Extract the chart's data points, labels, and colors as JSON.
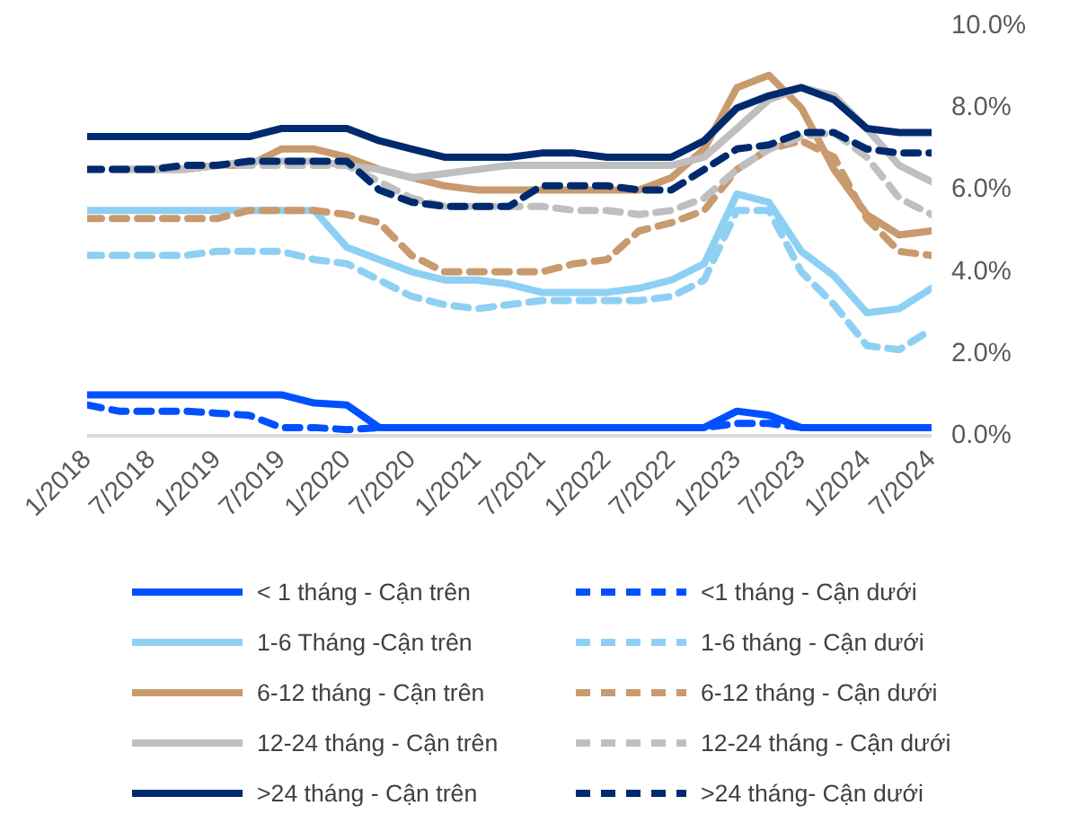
{
  "chart_data": {
    "type": "line",
    "x": [
      "2018-01",
      "2018-04",
      "2018-07",
      "2018-10",
      "2019-01",
      "2019-04",
      "2019-07",
      "2019-10",
      "2020-01",
      "2020-04",
      "2020-07",
      "2020-10",
      "2021-01",
      "2021-04",
      "2021-07",
      "2021-10",
      "2022-01",
      "2022-04",
      "2022-07",
      "2022-10",
      "2023-01",
      "2023-04",
      "2023-07",
      "2023-10",
      "2024-01",
      "2024-04",
      "2024-07"
    ],
    "series": [
      {
        "name": "< 1 tháng - Cận trên",
        "color": "#0050ff",
        "line_style": "solid",
        "values": [
          1.0,
          1.0,
          1.0,
          1.0,
          1.0,
          1.0,
          1.0,
          0.8,
          0.75,
          0.2,
          0.2,
          0.2,
          0.2,
          0.2,
          0.2,
          0.2,
          0.2,
          0.2,
          0.2,
          0.2,
          0.6,
          0.5,
          0.2,
          0.2,
          0.2,
          0.2,
          0.2
        ]
      },
      {
        "name": "<1 tháng - Cận dưới",
        "color": "#0050ff",
        "line_style": "dashed",
        "values": [
          0.75,
          0.6,
          0.6,
          0.6,
          0.55,
          0.5,
          0.2,
          0.2,
          0.15,
          0.2,
          0.2,
          0.2,
          0.2,
          0.2,
          0.2,
          0.2,
          0.2,
          0.2,
          0.2,
          0.2,
          0.3,
          0.3,
          0.2,
          0.2,
          0.2,
          0.2,
          0.2
        ]
      },
      {
        "name": "1-6 Tháng -Cận trên",
        "color": "#8ed0f4",
        "line_style": "solid",
        "values": [
          5.5,
          5.5,
          5.5,
          5.5,
          5.5,
          5.5,
          5.5,
          5.5,
          4.6,
          4.3,
          4.0,
          3.8,
          3.8,
          3.7,
          3.5,
          3.5,
          3.5,
          3.6,
          3.8,
          4.2,
          5.9,
          5.7,
          4.5,
          3.9,
          3.0,
          3.1,
          3.6
        ]
      },
      {
        "name": "1-6 tháng - Cận dưới",
        "color": "#8ed0f4",
        "line_style": "dashed",
        "values": [
          4.4,
          4.4,
          4.4,
          4.4,
          4.5,
          4.5,
          4.5,
          4.3,
          4.2,
          3.8,
          3.4,
          3.2,
          3.1,
          3.2,
          3.3,
          3.3,
          3.3,
          3.3,
          3.4,
          3.8,
          5.5,
          5.5,
          4.0,
          3.2,
          2.2,
          2.1,
          2.6
        ]
      },
      {
        "name": "6-12 tháng - Cận trên",
        "color": "#c99a6e",
        "line_style": "solid",
        "values": [
          null,
          6.5,
          6.5,
          6.5,
          6.6,
          6.6,
          7.0,
          7.0,
          6.8,
          6.5,
          6.3,
          6.1,
          6.0,
          6.0,
          6.0,
          6.0,
          6.0,
          6.0,
          6.3,
          7.0,
          8.5,
          8.8,
          8.0,
          6.5,
          5.4,
          4.9,
          5.0
        ]
      },
      {
        "name": "6-12 tháng - Cận dưới",
        "color": "#c99a6e",
        "line_style": "dashed",
        "values": [
          5.3,
          5.3,
          5.3,
          5.3,
          5.3,
          5.5,
          5.5,
          5.5,
          5.4,
          5.2,
          4.4,
          4.0,
          4.0,
          4.0,
          4.0,
          4.2,
          4.3,
          5.0,
          5.2,
          5.5,
          6.5,
          7.0,
          7.2,
          6.8,
          5.3,
          4.5,
          4.4
        ]
      },
      {
        "name": "12-24 tháng - Cận trên",
        "color": "#bfbfbf",
        "line_style": "solid",
        "values": [
          null,
          6.5,
          6.5,
          6.5,
          6.6,
          6.7,
          6.7,
          6.7,
          6.6,
          6.5,
          6.3,
          6.4,
          6.5,
          6.6,
          6.6,
          6.6,
          6.6,
          6.6,
          6.6,
          6.8,
          7.5,
          8.2,
          8.5,
          8.3,
          7.5,
          6.6,
          6.2
        ]
      },
      {
        "name": "12-24 tháng - Cận dưới",
        "color": "#bfbfbf",
        "line_style": "dashed",
        "values": [
          6.5,
          6.5,
          6.5,
          6.5,
          6.6,
          6.6,
          6.6,
          6.6,
          6.6,
          6.2,
          5.8,
          5.6,
          5.6,
          5.6,
          5.6,
          5.5,
          5.5,
          5.4,
          5.5,
          5.8,
          6.5,
          7.0,
          7.3,
          7.4,
          6.8,
          5.8,
          5.4
        ]
      },
      {
        "name": ">24 tháng - Cận trên",
        "color": "#002a6e",
        "line_style": "solid",
        "values": [
          7.3,
          7.3,
          7.3,
          7.3,
          7.3,
          7.3,
          7.5,
          7.5,
          7.5,
          7.2,
          7.0,
          6.8,
          6.8,
          6.8,
          6.9,
          6.9,
          6.8,
          6.8,
          6.8,
          7.2,
          8.0,
          8.3,
          8.5,
          8.2,
          7.5,
          7.4,
          7.4
        ]
      },
      {
        "name": ">24 tháng- Cận dưới",
        "color": "#002a6e",
        "line_style": "dashed",
        "values": [
          6.5,
          6.5,
          6.5,
          6.6,
          6.6,
          6.7,
          6.7,
          6.7,
          6.7,
          6.0,
          5.7,
          5.6,
          5.6,
          5.6,
          6.1,
          6.1,
          6.1,
          6.0,
          6.0,
          6.5,
          7.0,
          7.1,
          7.4,
          7.4,
          7.0,
          6.9,
          6.9
        ]
      }
    ],
    "xlim": [
      "2018-01",
      "2024-07"
    ],
    "xticks": [
      {
        "value": "2018-01",
        "label": "1/2018"
      },
      {
        "value": "2018-07",
        "label": "7/2018"
      },
      {
        "value": "2019-01",
        "label": "1/2019"
      },
      {
        "value": "2019-07",
        "label": "7/2019"
      },
      {
        "value": "2020-01",
        "label": "1/2020"
      },
      {
        "value": "2020-07",
        "label": "7/2020"
      },
      {
        "value": "2021-01",
        "label": "1/2021"
      },
      {
        "value": "2021-07",
        "label": "7/2021"
      },
      {
        "value": "2022-01",
        "label": "1/2022"
      },
      {
        "value": "2022-07",
        "label": "7/2022"
      },
      {
        "value": "2023-01",
        "label": "1/2023"
      },
      {
        "value": "2023-07",
        "label": "7/2023"
      },
      {
        "value": "2024-01",
        "label": "1/2024"
      },
      {
        "value": "2024-07",
        "label": "7/2024"
      }
    ],
    "ylim": [
      0,
      10
    ],
    "yticks": [
      {
        "value": 0,
        "label": "0.0%"
      },
      {
        "value": 2,
        "label": "2.0%"
      },
      {
        "value": 4,
        "label": "4.0%"
      },
      {
        "value": 6,
        "label": "6.0%"
      },
      {
        "value": 8,
        "label": "8.0%"
      },
      {
        "value": 10,
        "label": "10.0%"
      }
    ],
    "grid": false,
    "legend": "bottom",
    "marker": "none"
  }
}
